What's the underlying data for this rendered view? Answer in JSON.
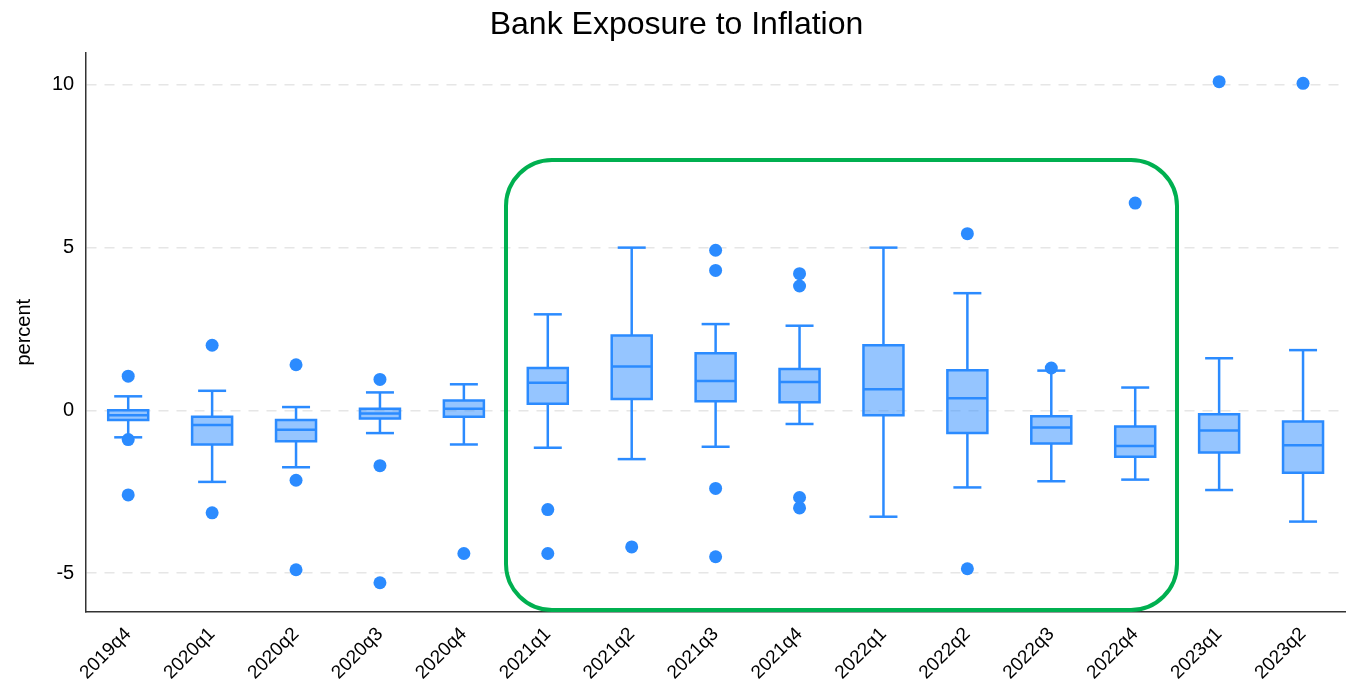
{
  "chart_data": {
    "type": "box",
    "title": "Bank Exposure to Inflation",
    "ylabel": "percent",
    "categories": [
      "2019q4",
      "2020q1",
      "2020q2",
      "2020q3",
      "2020q4",
      "2021q1",
      "2021q2",
      "2021q3",
      "2021q4",
      "2022q1",
      "2022q2",
      "2022q3",
      "2022q4",
      "2023q1",
      "2023q2"
    ],
    "color": "#2b8bff",
    "boxes": [
      {
        "low": -0.83,
        "q1": -0.3,
        "median": -0.15,
        "q3": 0,
        "high": 0.43,
        "outliers": [
          1.05,
          -0.9,
          -2.6
        ]
      },
      {
        "low": -2.2,
        "q1": -1.05,
        "median": -0.45,
        "q3": -0.2,
        "high": 0.6,
        "outliers": [
          2.0,
          -3.15
        ]
      },
      {
        "low": -1.75,
        "q1": -0.95,
        "median": -0.6,
        "q3": -0.3,
        "high": 0.1,
        "outliers": [
          1.4,
          -2.15,
          -4.9
        ]
      },
      {
        "low": -0.7,
        "q1": -0.25,
        "median": -0.1,
        "q3": 0.05,
        "high": 0.55,
        "outliers": [
          0.95,
          -1.7,
          -5.3
        ]
      },
      {
        "low": -1.05,
        "q1": -0.2,
        "median": 0.05,
        "q3": 0.3,
        "high": 0.8,
        "outliers": [
          -4.4
        ]
      },
      {
        "low": -1.15,
        "q1": 0.2,
        "median": 0.85,
        "q3": 1.3,
        "high": 2.95,
        "outliers": [
          -3.05,
          -4.4
        ]
      },
      {
        "low": -1.5,
        "q1": 0.35,
        "median": 1.35,
        "q3": 2.3,
        "high": 5.0,
        "outliers": [
          -4.2
        ]
      },
      {
        "low": -1.12,
        "q1": 0.28,
        "median": 0.9,
        "q3": 1.75,
        "high": 2.65,
        "outliers": [
          4.92,
          4.3,
          -2.4,
          -4.5
        ]
      },
      {
        "low": -0.42,
        "q1": 0.25,
        "median": 0.87,
        "q3": 1.27,
        "high": 2.6,
        "outliers": [
          4.2,
          3.82,
          -2.68,
          -3.0
        ]
      },
      {
        "low": -3.27,
        "q1": -0.15,
        "median": 0.65,
        "q3": 2.0,
        "high": 5.0
      },
      {
        "low": -2.37,
        "q1": -0.7,
        "median": 0.37,
        "q3": 1.23,
        "high": 3.6,
        "outliers": [
          5.43,
          -4.87
        ]
      },
      {
        "low": -2.18,
        "q1": -1.02,
        "median": -0.53,
        "q3": -0.18,
        "high": 1.22,
        "outliers": [
          1.3
        ]
      },
      {
        "low": -2.13,
        "q1": -1.43,
        "median": -1.1,
        "q3": -0.5,
        "high": 0.7,
        "outliers": [
          6.37
        ]
      },
      {
        "low": -2.45,
        "q1": -1.3,
        "median": -0.62,
        "q3": -0.12,
        "high": 1.6,
        "outliers": [
          10.1
        ]
      },
      {
        "low": -3.42,
        "q1": -1.92,
        "median": -1.07,
        "q3": -0.34,
        "high": 1.85,
        "outliers": [
          10.05
        ]
      }
    ],
    "ylim": [
      -6.2,
      11
    ],
    "yticks": [
      -5,
      0,
      5,
      10
    ],
    "grid": "y",
    "legend": false
  }
}
